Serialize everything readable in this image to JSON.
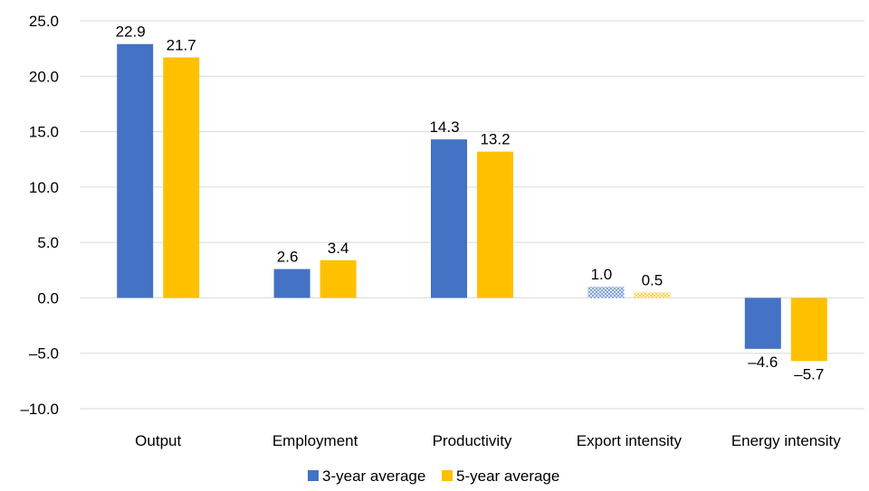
{
  "chart_data": {
    "type": "bar",
    "categories": [
      "Output",
      "Employment",
      "Productivity",
      "Export intensity",
      "Energy intensity"
    ],
    "series": [
      {
        "name": "3-year average",
        "color": "#4472C4",
        "values": [
          22.9,
          2.6,
          14.3,
          1.0,
          -4.6
        ],
        "labels": [
          "22.9",
          "2.6",
          "14.3",
          "1.0",
          "–4.6"
        ]
      },
      {
        "name": "5-year average",
        "color": "#FFC000",
        "values": [
          21.7,
          3.4,
          13.2,
          0.5,
          -5.7
        ],
        "labels": [
          "21.7",
          "3.4",
          "13.2",
          "0.5",
          "–5.7"
        ]
      }
    ],
    "patterned_categories": [
      "Export intensity"
    ],
    "yticks": [
      -10.0,
      -5.0,
      0.0,
      5.0,
      10.0,
      15.0,
      20.0,
      25.0
    ],
    "ytick_labels": [
      "–10.0",
      "–5.0",
      "0.0",
      "5.0",
      "10.0",
      "15.0",
      "20.0",
      "25.0"
    ],
    "ylim": [
      -10,
      25
    ],
    "grid": true,
    "gridline_color": "#D9D9D9",
    "legend_position": "bottom",
    "title": "",
    "xlabel": "",
    "ylabel": ""
  }
}
